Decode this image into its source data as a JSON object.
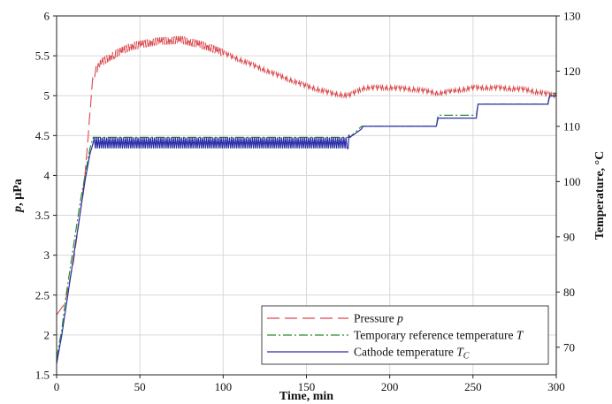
{
  "chart_data": {
    "type": "line",
    "title": "",
    "xlabel": "Time, min",
    "ylabel_left": "p, µPa",
    "ylabel_right": "Temperature, °C",
    "xlim": [
      0,
      300
    ],
    "ylim_left": [
      1.5,
      6
    ],
    "ylim_right": [
      65,
      130
    ],
    "x_ticks": [
      "0",
      "50",
      "100",
      "150",
      "200",
      "250",
      "300"
    ],
    "y_left_ticks": [
      "1.5",
      "2",
      "2.5",
      "3",
      "3.5",
      "4",
      "4.5",
      "5",
      "5.5",
      "6"
    ],
    "y_right_ticks": [
      "70",
      "80",
      "90",
      "100",
      "110",
      "120",
      "130"
    ],
    "grid": true,
    "legend_position": "bottom-right",
    "colors": {
      "pressure": "#d9484d",
      "reference": "#2e8b2e",
      "cathode": "#2b2fa6"
    },
    "series": [
      {
        "name": "Pressure p",
        "axis": "left",
        "style": "dashed",
        "x": [
          0,
          5,
          10,
          14,
          17,
          19,
          21,
          23,
          27,
          35,
          45,
          60,
          75,
          90,
          110,
          130,
          150,
          165,
          175,
          180,
          185,
          200,
          215,
          230,
          250,
          265,
          280,
          295,
          300
        ],
        "y": [
          2.25,
          2.4,
          2.9,
          3.5,
          4.0,
          4.5,
          5.1,
          5.3,
          5.42,
          5.52,
          5.62,
          5.68,
          5.7,
          5.62,
          5.45,
          5.28,
          5.12,
          5.03,
          5.0,
          5.05,
          5.1,
          5.1,
          5.08,
          5.03,
          5.1,
          5.1,
          5.08,
          5.02,
          5.0
        ]
      },
      {
        "name": "Temporary reference temperature T",
        "axis": "right",
        "style": "dash-dot",
        "x": [
          0,
          3,
          6,
          10,
          14,
          17,
          20,
          22,
          175,
          176,
          183,
          184,
          228,
          229,
          252,
          253,
          295,
          296,
          300
        ],
        "y": [
          68,
          73,
          80,
          88,
          96,
          101,
          106,
          108,
          108,
          108,
          110,
          110,
          110,
          112,
          112,
          114,
          114,
          116,
          116
        ]
      },
      {
        "name": "Cathode temperature T_C",
        "axis": "right",
        "style": "solid",
        "x": [
          0,
          3,
          6,
          10,
          14,
          17,
          20,
          22,
          175,
          176,
          183,
          184,
          228,
          229,
          252,
          253,
          295,
          296,
          300
        ],
        "y": [
          67,
          72,
          78,
          86,
          94,
          100,
          105,
          107,
          107,
          108,
          109.5,
          110,
          110,
          111.5,
          111.5,
          114,
          114,
          115.5,
          115.5
        ]
      }
    ]
  },
  "legend": [
    {
      "label": "Pressure ",
      "var": "p",
      "sub": ""
    },
    {
      "label": "Temporary reference temperature ",
      "var": "T",
      "sub": ""
    },
    {
      "label": "Cathode temperature ",
      "var": "T",
      "sub": "C"
    }
  ]
}
